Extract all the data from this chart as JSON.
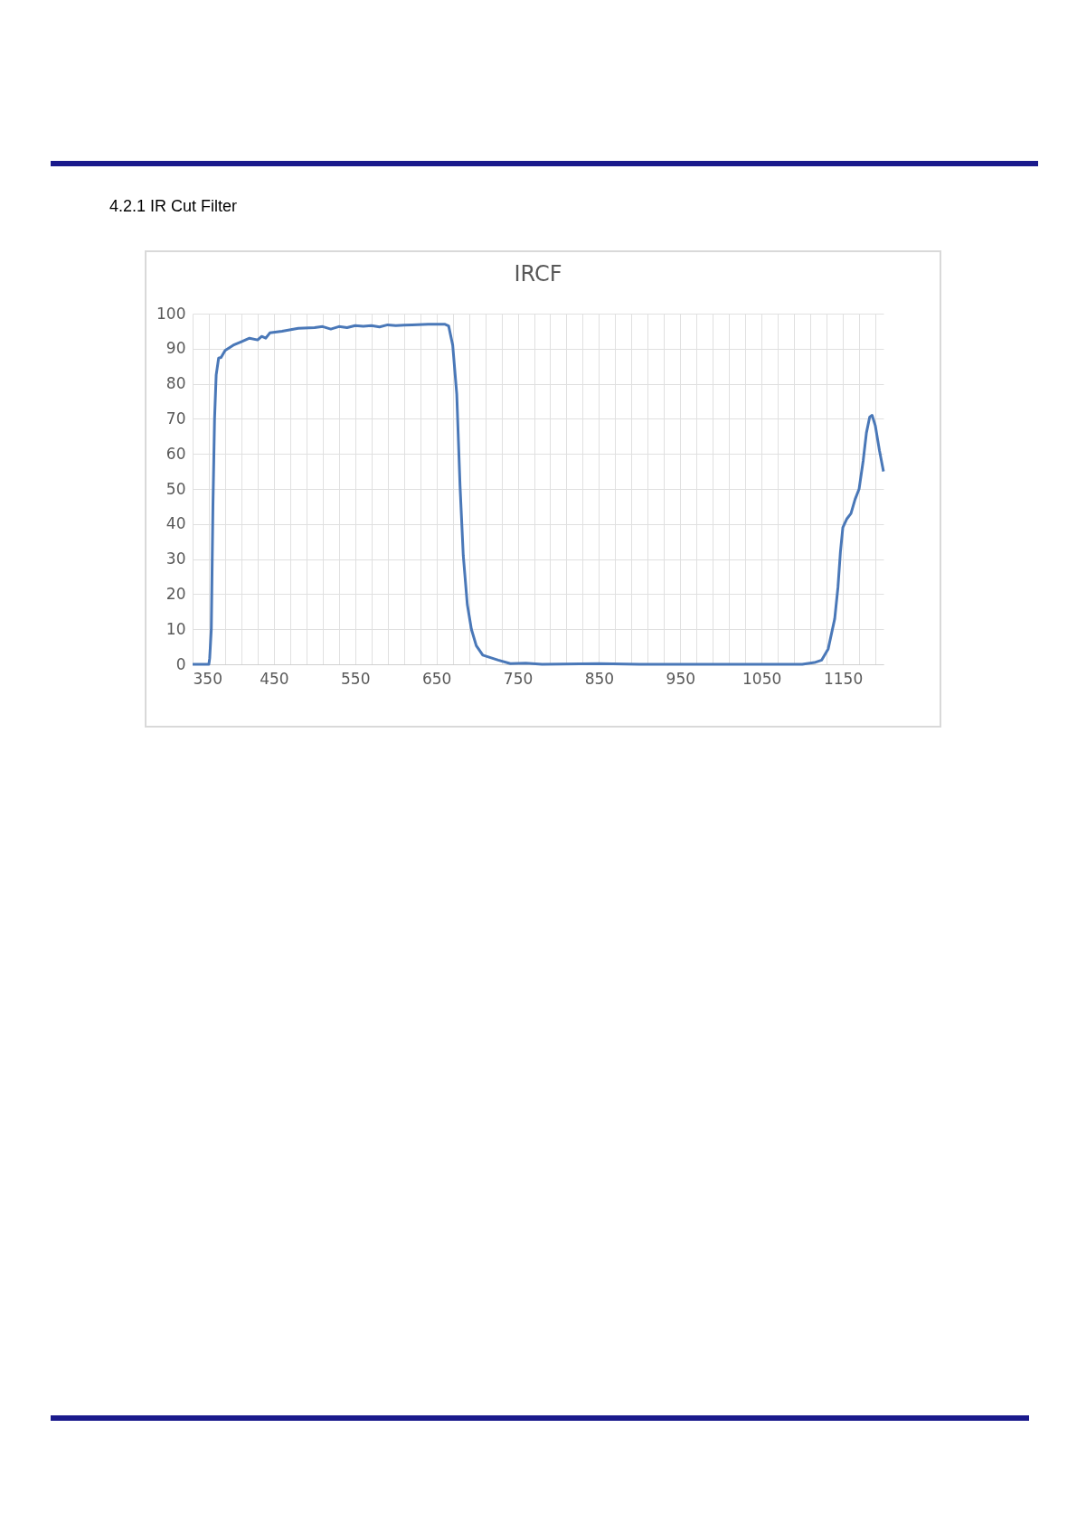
{
  "chart_data": {
    "type": "line",
    "title": "IRCF",
    "annotations": [
      "4.2.1 IR Cut Filter"
    ],
    "x": [
      350,
      370,
      371,
      373,
      375,
      377,
      379,
      382,
      385,
      390,
      400,
      410,
      420,
      430,
      435,
      440,
      445,
      460,
      480,
      500,
      510,
      520,
      530,
      540,
      550,
      560,
      570,
      580,
      590,
      600,
      610,
      620,
      640,
      660,
      665,
      670,
      675,
      679,
      683,
      688,
      693,
      699,
      707,
      726,
      741,
      760,
      780,
      850,
      900,
      1000,
      1100,
      1115,
      1124,
      1132,
      1140,
      1144,
      1147,
      1150,
      1155,
      1160,
      1165,
      1170,
      1175,
      1179,
      1183,
      1186,
      1190,
      1195,
      1200
    ],
    "series": [
      {
        "color": "#4a78b8",
        "values": [
          0,
          0,
          1.7,
          10,
          45,
          70,
          82.5,
          87.3,
          87.5,
          89.5,
          91,
          92,
          93,
          92.5,
          93.5,
          93,
          94.5,
          95,
          95.8,
          96,
          96.3,
          95.6,
          96.3,
          96,
          96.6,
          96.4,
          96.6,
          96.2,
          96.8,
          96.6,
          96.7,
          96.8,
          97,
          97,
          96.5,
          91,
          77,
          51,
          31,
          17,
          10,
          5.3,
          2.6,
          1.2,
          0.2,
          0.3,
          0,
          0.2,
          0,
          0,
          0,
          0.5,
          1.2,
          4.4,
          13,
          22,
          32,
          39,
          41.5,
          43,
          47,
          50,
          58,
          66,
          70.5,
          71,
          68,
          61,
          55
        ]
      }
    ],
    "xlim": [
      350,
      1200
    ],
    "xticks": [
      350,
      {
        "value": 370,
        "label": null
      },
      {
        "value": 390,
        "label": null
      },
      {
        "value": 410,
        "label": null
      },
      {
        "value": 430,
        "label": null
      },
      450,
      {
        "value": 470,
        "label": null
      },
      {
        "value": 490,
        "label": null
      },
      {
        "value": 510,
        "label": null
      },
      {
        "value": 530,
        "label": null
      },
      550,
      {
        "value": 570,
        "label": null
      },
      {
        "value": 590,
        "label": null
      },
      {
        "value": 610,
        "label": null
      },
      {
        "value": 630,
        "label": null
      },
      650,
      {
        "value": 670,
        "label": null
      },
      {
        "value": 690,
        "label": null
      },
      {
        "value": 710,
        "label": null
      },
      {
        "value": 730,
        "label": null
      },
      750,
      {
        "value": 770,
        "label": null
      },
      {
        "value": 790,
        "label": null
      },
      {
        "value": 810,
        "label": null
      },
      {
        "value": 830,
        "label": null
      },
      850,
      {
        "value": 870,
        "label": null
      },
      {
        "value": 890,
        "label": null
      },
      {
        "value": 910,
        "label": null
      },
      {
        "value": 930,
        "label": null
      },
      950,
      {
        "value": 970,
        "label": null
      },
      {
        "value": 990,
        "label": null
      },
      {
        "value": 1010,
        "label": null
      },
      {
        "value": 1030,
        "label": null
      },
      1050,
      {
        "value": 1070,
        "label": null
      },
      {
        "value": 1090,
        "label": null
      },
      {
        "value": 1110,
        "label": null
      },
      {
        "value": 1130,
        "label": null
      },
      1150,
      {
        "value": 1170,
        "label": null
      },
      {
        "value": 1190,
        "label": null
      }
    ],
    "ylim": [
      0,
      100
    ],
    "yticks": [
      0,
      10,
      20,
      30,
      40,
      50,
      60,
      70,
      80,
      90,
      100
    ],
    "grid": true,
    "line_style": "solid",
    "marker": "none"
  }
}
